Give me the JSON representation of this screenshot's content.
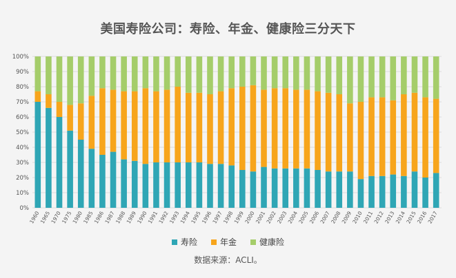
{
  "chart_data": {
    "type": "bar",
    "stacked": true,
    "title": "美国寿险公司：寿险、年金、健康险三分天下",
    "source": "数据来源：ACLI。",
    "ylim": [
      0,
      100
    ],
    "y_tick_values": [
      0,
      10,
      20,
      30,
      40,
      50,
      60,
      70,
      80,
      90,
      100
    ],
    "y_tick_labels": [
      "0%",
      "10%",
      "20%",
      "30%",
      "40%",
      "50%",
      "60%",
      "70%",
      "80%",
      "90%",
      "100%"
    ],
    "categories": [
      "1960",
      "1965",
      "1970",
      "1975",
      "1980",
      "1985",
      "1986",
      "1987",
      "1988",
      "1989",
      "1990",
      "1991",
      "1992",
      "1993",
      "1994",
      "1995",
      "1996",
      "1997",
      "1998",
      "1999",
      "2000",
      "2001",
      "2002",
      "2003",
      "2004",
      "2005",
      "2006",
      "2007",
      "2008",
      "2009",
      "2010",
      "2011",
      "2012",
      "2013",
      "2014",
      "2015",
      "2016",
      "2017"
    ],
    "series": [
      {
        "name": "寿险",
        "color": "#2fa6b5",
        "values": [
          70,
          66,
          60,
          51,
          45,
          39,
          35,
          37,
          32,
          31,
          29,
          30,
          30,
          30,
          30,
          30,
          29,
          29,
          28,
          25,
          24,
          27,
          26,
          26,
          26,
          26,
          25,
          24,
          24,
          24,
          19,
          21,
          21,
          22,
          21,
          24,
          20,
          23
        ]
      },
      {
        "name": "年金",
        "color": "#f7a51c",
        "values": [
          7,
          9,
          10,
          17,
          24,
          35,
          44,
          41,
          45,
          46,
          50,
          47,
          48,
          50,
          46,
          46,
          46,
          48,
          51,
          55,
          57,
          51,
          53,
          53,
          52,
          52,
          52,
          52,
          51,
          45,
          51,
          52,
          52,
          49,
          54,
          52,
          53,
          49
        ]
      },
      {
        "name": "健康险",
        "color": "#a5cd6a",
        "values": [
          23,
          25,
          30,
          32,
          31,
          26,
          21,
          22,
          23,
          23,
          21,
          23,
          22,
          20,
          24,
          24,
          25,
          23,
          21,
          20,
          19,
          22,
          21,
          21,
          22,
          22,
          23,
          24,
          25,
          31,
          30,
          27,
          27,
          29,
          25,
          24,
          27,
          28
        ]
      }
    ]
  }
}
